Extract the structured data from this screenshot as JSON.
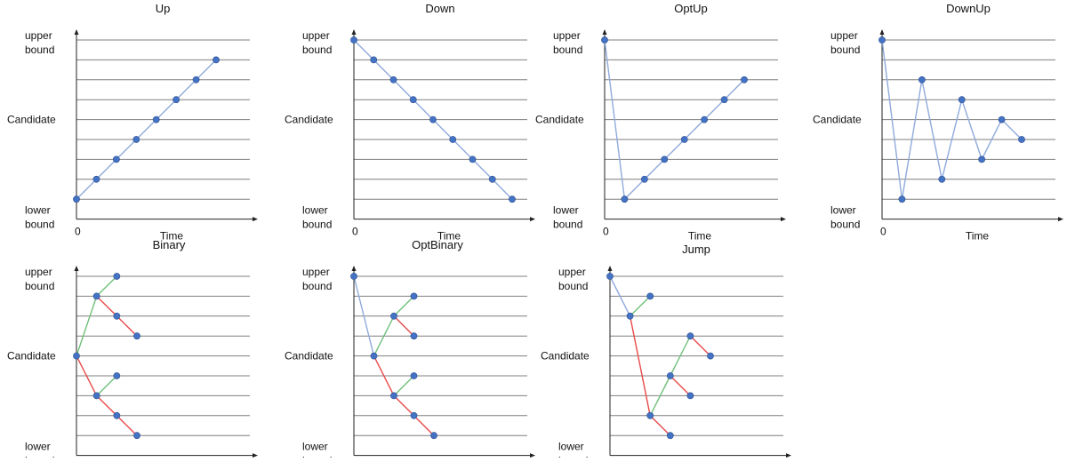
{
  "labels": {
    "upper_line1": "upper",
    "upper_line2": "bound",
    "lower_line1": "lower",
    "lower_line2": "bound",
    "candidate": "Candidate",
    "origin": "0",
    "time": "Time"
  },
  "colors": {
    "line": "#7f7f7f",
    "point": "#4472c4",
    "blue": "#8faadc",
    "green": "#70c07a",
    "red": "#e84a4a"
  },
  "panels": [
    {
      "title": "Up",
      "segments": [
        {
          "from": [
            0,
            0
          ],
          "to": [
            1,
            1
          ],
          "color": "blue"
        },
        {
          "from": [
            1,
            1
          ],
          "to": [
            2,
            2
          ],
          "color": "blue"
        },
        {
          "from": [
            2,
            2
          ],
          "to": [
            3,
            3
          ],
          "color": "blue"
        },
        {
          "from": [
            3,
            3
          ],
          "to": [
            4,
            4
          ],
          "color": "blue"
        },
        {
          "from": [
            4,
            4
          ],
          "to": [
            5,
            5
          ],
          "color": "blue"
        },
        {
          "from": [
            5,
            5
          ],
          "to": [
            6,
            6
          ],
          "color": "blue"
        },
        {
          "from": [
            6,
            6
          ],
          "to": [
            7,
            7
          ],
          "color": "blue"
        }
      ],
      "points": [
        [
          0,
          0
        ],
        [
          1,
          1
        ],
        [
          2,
          2
        ],
        [
          3,
          3
        ],
        [
          4,
          4
        ],
        [
          5,
          5
        ],
        [
          6,
          6
        ],
        [
          7,
          7
        ]
      ]
    },
    {
      "title": "Down",
      "segments": [
        {
          "from": [
            0,
            8
          ],
          "to": [
            1,
            7
          ],
          "color": "blue"
        },
        {
          "from": [
            1,
            7
          ],
          "to": [
            2,
            6
          ],
          "color": "blue"
        },
        {
          "from": [
            2,
            6
          ],
          "to": [
            3,
            5
          ],
          "color": "blue"
        },
        {
          "from": [
            3,
            5
          ],
          "to": [
            4,
            4
          ],
          "color": "blue"
        },
        {
          "from": [
            4,
            4
          ],
          "to": [
            5,
            3
          ],
          "color": "blue"
        },
        {
          "from": [
            5,
            3
          ],
          "to": [
            6,
            2
          ],
          "color": "blue"
        },
        {
          "from": [
            6,
            2
          ],
          "to": [
            7,
            1
          ],
          "color": "blue"
        },
        {
          "from": [
            7,
            1
          ],
          "to": [
            8,
            0
          ],
          "color": "blue"
        }
      ],
      "points": [
        [
          0,
          8
        ],
        [
          1,
          7
        ],
        [
          2,
          6
        ],
        [
          3,
          5
        ],
        [
          4,
          4
        ],
        [
          5,
          3
        ],
        [
          6,
          2
        ],
        [
          7,
          1
        ],
        [
          8,
          0
        ]
      ]
    },
    {
      "title": "OptUp",
      "segments": [
        {
          "from": [
            0,
            8
          ],
          "to": [
            1,
            0
          ],
          "color": "blue"
        },
        {
          "from": [
            1,
            0
          ],
          "to": [
            2,
            1
          ],
          "color": "blue"
        },
        {
          "from": [
            2,
            1
          ],
          "to": [
            3,
            2
          ],
          "color": "blue"
        },
        {
          "from": [
            3,
            2
          ],
          "to": [
            4,
            3
          ],
          "color": "blue"
        },
        {
          "from": [
            4,
            3
          ],
          "to": [
            5,
            4
          ],
          "color": "blue"
        },
        {
          "from": [
            5,
            4
          ],
          "to": [
            6,
            5
          ],
          "color": "blue"
        },
        {
          "from": [
            6,
            5
          ],
          "to": [
            7,
            6
          ],
          "color": "blue"
        }
      ],
      "points": [
        [
          0,
          8
        ],
        [
          1,
          0
        ],
        [
          2,
          1
        ],
        [
          3,
          2
        ],
        [
          4,
          3
        ],
        [
          5,
          4
        ],
        [
          6,
          5
        ],
        [
          7,
          6
        ]
      ]
    },
    {
      "title": "DownUp",
      "segments": [
        {
          "from": [
            0,
            8
          ],
          "to": [
            1,
            0
          ],
          "color": "blue"
        },
        {
          "from": [
            1,
            0
          ],
          "to": [
            2,
            6
          ],
          "color": "blue"
        },
        {
          "from": [
            2,
            6
          ],
          "to": [
            3,
            1
          ],
          "color": "blue"
        },
        {
          "from": [
            3,
            1
          ],
          "to": [
            4,
            5
          ],
          "color": "blue"
        },
        {
          "from": [
            4,
            5
          ],
          "to": [
            5,
            2
          ],
          "color": "blue"
        },
        {
          "from": [
            5,
            2
          ],
          "to": [
            6,
            4
          ],
          "color": "blue"
        },
        {
          "from": [
            6,
            4
          ],
          "to": [
            7,
            3
          ],
          "color": "blue"
        }
      ],
      "points": [
        [
          0,
          8
        ],
        [
          1,
          0
        ],
        [
          2,
          6
        ],
        [
          3,
          1
        ],
        [
          4,
          5
        ],
        [
          5,
          2
        ],
        [
          6,
          4
        ],
        [
          7,
          3
        ]
      ]
    },
    {
      "title": "Binary",
      "segments": [
        {
          "from": [
            0,
            4
          ],
          "to": [
            1,
            7
          ],
          "color": "green"
        },
        {
          "from": [
            1,
            7
          ],
          "to": [
            2,
            8
          ],
          "color": "green"
        },
        {
          "from": [
            1,
            7
          ],
          "to": [
            2,
            6
          ],
          "color": "red"
        },
        {
          "from": [
            2,
            6
          ],
          "to": [
            3,
            5
          ],
          "color": "red"
        },
        {
          "from": [
            0,
            4
          ],
          "to": [
            1,
            2
          ],
          "color": "red"
        },
        {
          "from": [
            1,
            2
          ],
          "to": [
            2,
            3
          ],
          "color": "green"
        },
        {
          "from": [
            1,
            2
          ],
          "to": [
            2,
            1
          ],
          "color": "red"
        },
        {
          "from": [
            2,
            1
          ],
          "to": [
            3,
            0
          ],
          "color": "red"
        }
      ],
      "points": [
        [
          0,
          4
        ],
        [
          1,
          7
        ],
        [
          2,
          8
        ],
        [
          2,
          6
        ],
        [
          3,
          5
        ],
        [
          1,
          2
        ],
        [
          2,
          3
        ],
        [
          2,
          1
        ],
        [
          3,
          0
        ]
      ]
    },
    {
      "title": "OptBinary",
      "segments": [
        {
          "from": [
            0,
            8
          ],
          "to": [
            1,
            4
          ],
          "color": "blue"
        },
        {
          "from": [
            1,
            4
          ],
          "to": [
            2,
            6
          ],
          "color": "green"
        },
        {
          "from": [
            2,
            6
          ],
          "to": [
            3,
            7
          ],
          "color": "green"
        },
        {
          "from": [
            2,
            6
          ],
          "to": [
            3,
            5
          ],
          "color": "red"
        },
        {
          "from": [
            1,
            4
          ],
          "to": [
            2,
            2
          ],
          "color": "red"
        },
        {
          "from": [
            2,
            2
          ],
          "to": [
            3,
            3
          ],
          "color": "green"
        },
        {
          "from": [
            2,
            2
          ],
          "to": [
            3,
            1
          ],
          "color": "red"
        },
        {
          "from": [
            3,
            1
          ],
          "to": [
            4,
            0
          ],
          "color": "red"
        }
      ],
      "points": [
        [
          0,
          8
        ],
        [
          1,
          4
        ],
        [
          2,
          6
        ],
        [
          3,
          7
        ],
        [
          3,
          5
        ],
        [
          2,
          2
        ],
        [
          3,
          3
        ],
        [
          3,
          1
        ],
        [
          4,
          0
        ]
      ]
    },
    {
      "title": "Jump",
      "segments": [
        {
          "from": [
            0,
            8
          ],
          "to": [
            1,
            6
          ],
          "color": "blue"
        },
        {
          "from": [
            1,
            6
          ],
          "to": [
            2,
            7
          ],
          "color": "green"
        },
        {
          "from": [
            1,
            6
          ],
          "to": [
            2,
            1
          ],
          "color": "red"
        },
        {
          "from": [
            2,
            1
          ],
          "to": [
            3,
            3
          ],
          "color": "green"
        },
        {
          "from": [
            3,
            3
          ],
          "to": [
            4,
            5
          ],
          "color": "green"
        },
        {
          "from": [
            4,
            5
          ],
          "to": [
            5,
            4
          ],
          "color": "red"
        },
        {
          "from": [
            3,
            3
          ],
          "to": [
            4,
            2
          ],
          "color": "red"
        },
        {
          "from": [
            2,
            1
          ],
          "to": [
            3,
            0
          ],
          "color": "red"
        }
      ],
      "points": [
        [
          0,
          8
        ],
        [
          1,
          6
        ],
        [
          2,
          7
        ],
        [
          2,
          1
        ],
        [
          3,
          3
        ],
        [
          4,
          5
        ],
        [
          5,
          4
        ],
        [
          4,
          2
        ],
        [
          3,
          0
        ]
      ]
    }
  ]
}
